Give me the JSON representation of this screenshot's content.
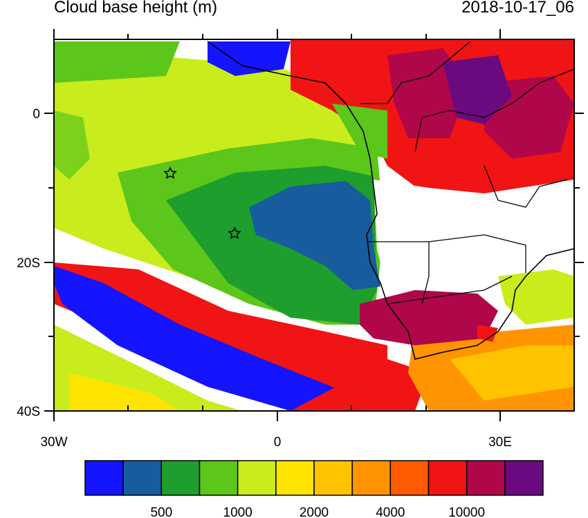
{
  "header": {
    "title": "Cloud base height (m)",
    "timestamp": "2018-10-17_06"
  },
  "axes": {
    "y_labels": [
      "0",
      "20S",
      "40S"
    ],
    "x_labels": [
      "30W",
      "0",
      "30E"
    ]
  },
  "colorbar": {
    "colors": [
      "#1414ff",
      "#175d9e",
      "#1e9e2c",
      "#5cc61b",
      "#c9ec1c",
      "#ffe400",
      "#ffc300",
      "#ff9400",
      "#ff5a00",
      "#f01414",
      "#b0064a",
      "#6a0a7e"
    ],
    "labels": [
      "500",
      "1000",
      "2000",
      "4000",
      "10000"
    ]
  }
}
